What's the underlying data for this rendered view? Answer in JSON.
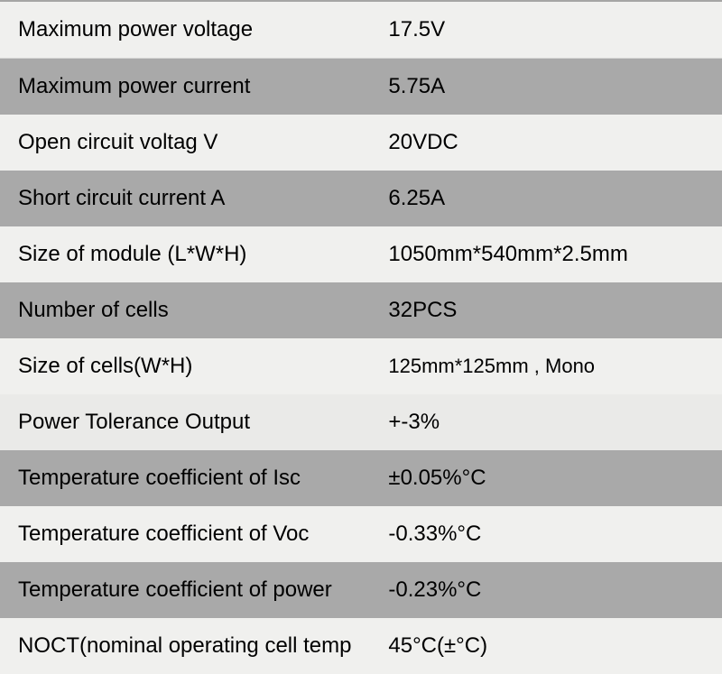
{
  "specs": {
    "rows": [
      {
        "label": "Maximum power voltage",
        "value": "17.5V",
        "bg": "light",
        "extraClass": "artifact-top"
      },
      {
        "label": "Maximum power current",
        "value": "5.75A",
        "bg": "gray"
      },
      {
        "label": "Open circuit voltag V",
        "value": "20VDC",
        "bg": "light"
      },
      {
        "label": "Short circuit current A",
        "value": "6.25A",
        "bg": "gray"
      },
      {
        "label": "Size of module (L*W*H)",
        "value": "1050mm*540mm*2.5mm",
        "bg": "light"
      },
      {
        "label": "Number of cells",
        "value": "32PCS",
        "bg": "gray"
      },
      {
        "label": "Size of cells(W*H)",
        "value": "125mm*125mm , Mono",
        "bg": "light",
        "valueSmaller": true
      },
      {
        "label": "Power Tolerance Output",
        "value": " +-3%",
        "bg": "lighter"
      },
      {
        "label": "Temperature coefficient of Isc",
        "value": "±0.05%°C",
        "bg": "gray"
      },
      {
        "label": "Temperature coefficient of Voc",
        "value": " -0.33%°C",
        "bg": "light"
      },
      {
        "label": "Temperature coefficient of power",
        "value": "-0.23%°C",
        "bg": "gray"
      },
      {
        "label": "NOCT(nominal operating cell temp",
        "value": "45°C(±°C)",
        "bg": "light"
      }
    ]
  }
}
